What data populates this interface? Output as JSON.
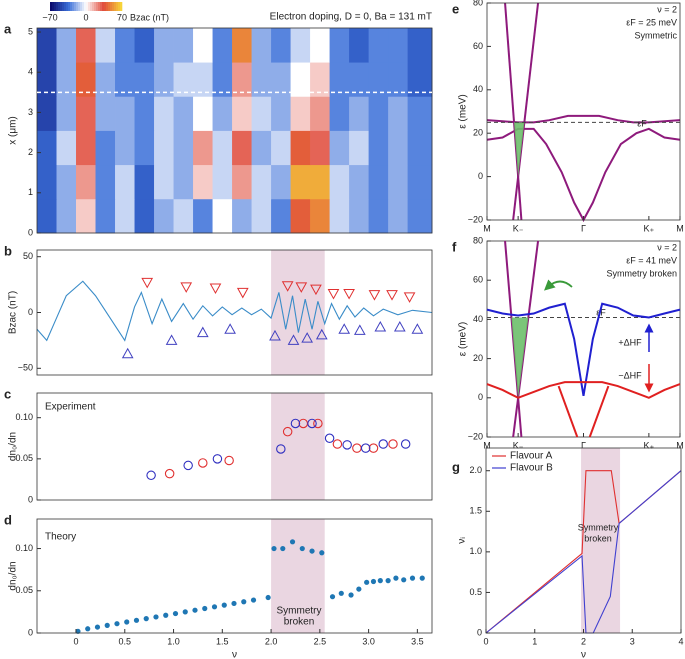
{
  "chart_data": [
    {
      "type": "heatmap",
      "label": "a",
      "title": "Electron doping, D = 0, Ba = 131 mT",
      "ylabel": "x (μm)",
      "colorbar_label": "Bzac (nT)",
      "xlim": [
        -0.4,
        3.65
      ],
      "ylim": [
        0,
        5.1
      ],
      "yticks": [
        0,
        1,
        2,
        3,
        4,
        5
      ],
      "xbins": [
        -0.4,
        -0.2,
        0,
        0.2,
        0.4,
        0.6,
        0.8,
        1,
        1.2,
        1.4,
        1.6,
        1.8,
        2,
        2.2,
        2.4,
        2.6,
        2.8,
        3,
        3.2,
        3.4,
        3.65
      ],
      "ybins": [
        0,
        0.85,
        1.7,
        2.55,
        3.4,
        4.25,
        5.1
      ],
      "z": [
        [
          -40,
          -20,
          10,
          -30,
          -10,
          -40,
          -20,
          -10,
          -30,
          0,
          -20,
          -10,
          -30,
          40,
          50,
          -10,
          -20,
          -30,
          -20,
          -30
        ],
        [
          -40,
          -20,
          20,
          -30,
          -10,
          -40,
          -10,
          -20,
          10,
          -10,
          20,
          -10,
          -20,
          60,
          60,
          -10,
          -20,
          -30,
          -20,
          -30
        ],
        [
          -40,
          -10,
          30,
          -30,
          -20,
          -30,
          -10,
          -20,
          20,
          -10,
          30,
          -20,
          -10,
          40,
          30,
          -20,
          -10,
          -30,
          -20,
          -30
        ],
        [
          -50,
          -20,
          30,
          -20,
          -20,
          -30,
          -10,
          -20,
          0,
          -20,
          10,
          -10,
          -20,
          10,
          20,
          -30,
          -20,
          -30,
          -20,
          -30
        ],
        [
          -50,
          -20,
          40,
          -20,
          -30,
          -30,
          -20,
          -10,
          -10,
          -30,
          20,
          -20,
          -20,
          0,
          10,
          -30,
          -30,
          -30,
          -30,
          -40
        ],
        [
          -50,
          -20,
          30,
          -10,
          -30,
          -40,
          -20,
          -20,
          0,
          -30,
          50,
          -20,
          -30,
          -10,
          0,
          -30,
          -40,
          -30,
          -30,
          -40
        ]
      ],
      "zlim": [
        -70,
        70
      ],
      "zticks": [
        {
          "value": -70,
          "label": "−70"
        },
        0,
        70
      ],
      "colorscale": [
        "#0a0a6e",
        "#3b6fd8",
        "#ffffff",
        "#e04a3a",
        "#f7d33a"
      ],
      "hline": 3.5
    },
    {
      "type": "combo",
      "label": "b",
      "ylabel": "Bzac (nT)",
      "xlim": [
        -0.4,
        3.65
      ],
      "ylim": [
        -56,
        56
      ],
      "yticks": [
        {
          "value": -50,
          "label": "−50"
        },
        0,
        50
      ],
      "shade": [
        2,
        2.55
      ],
      "shade_color": "#ead6e1",
      "series": [
        {
          "color": "#3a8cc8",
          "x": [
            -0.4,
            -0.3,
            -0.2,
            -0.1,
            0.07,
            0.2,
            0.35,
            0.5,
            0.6,
            0.67,
            0.78,
            0.88,
            0.98,
            1.1,
            1.2,
            1.3,
            1.4,
            1.5,
            1.6,
            1.7,
            1.8,
            1.9,
            2.0,
            2.08,
            2.15,
            2.22,
            2.28,
            2.35,
            2.42,
            2.48,
            2.55,
            2.62,
            2.7,
            2.78,
            2.86,
            2.95,
            3.05,
            3.15,
            3.3,
            3.45,
            3.65
          ],
          "values": [
            -15,
            -25,
            -5,
            15,
            28,
            15,
            -5,
            -25,
            5,
            18,
            -10,
            12,
            -8,
            8,
            -6,
            6,
            -3,
            5,
            -2,
            4,
            -2,
            3,
            -5,
            18,
            -15,
            15,
            -18,
            12,
            -15,
            10,
            -10,
            8,
            -6,
            6,
            -4,
            4,
            -3,
            3,
            -2,
            2,
            0
          ]
        },
        {
          "color": "#e03030",
          "marker": "triangle-down",
          "x": [
            0.73,
            1.13,
            1.43,
            1.71,
            2.17,
            2.31,
            2.46,
            2.64,
            2.8,
            3.06,
            3.24,
            3.42
          ],
          "values": [
            27,
            23,
            22,
            18,
            24,
            23,
            21,
            17,
            17,
            16,
            16,
            14
          ]
        },
        {
          "color": "#4040c0",
          "marker": "triangle-up",
          "x": [
            0.53,
            0.98,
            1.3,
            1.58,
            2.04,
            2.23,
            2.37,
            2.52,
            2.75,
            2.91,
            3.12,
            3.32,
            3.5
          ],
          "values": [
            -37,
            -25,
            -18,
            -15,
            -21,
            -25,
            -23,
            -20,
            -15,
            -16,
            -13,
            -13,
            -15
          ]
        }
      ]
    },
    {
      "type": "scatter",
      "label": "c",
      "ylabel": "dn₀/dn",
      "annotations": [
        "Experiment"
      ],
      "xlim": [
        -0.4,
        3.65
      ],
      "ylim": [
        0,
        0.13
      ],
      "yticks": [
        0,
        0.05,
        {
          "value": 0.1,
          "label": "0.10"
        }
      ],
      "shade": [
        2,
        2.55
      ],
      "shade_color": "#ead6e1",
      "series": [
        {
          "color": "#e03030",
          "marker": "circle-open",
          "x": [
            0.96,
            1.3,
            1.57,
            2.17,
            2.33,
            2.48,
            2.68,
            2.88,
            3.05,
            3.25
          ],
          "values": [
            0.032,
            0.045,
            0.048,
            0.083,
            0.093,
            0.093,
            0.068,
            0.063,
            0.063,
            0.068
          ]
        },
        {
          "color": "#3030c0",
          "marker": "circle-open",
          "x": [
            0.77,
            1.15,
            1.45,
            2.1,
            2.25,
            2.42,
            2.6,
            2.78,
            2.97,
            3.15,
            3.38
          ],
          "values": [
            0.03,
            0.042,
            0.05,
            0.062,
            0.093,
            0.093,
            0.075,
            0.067,
            0.063,
            0.068,
            0.068
          ]
        }
      ]
    },
    {
      "type": "scatter",
      "label": "d",
      "ylabel": "dn₀/dn",
      "xlabel": "ν",
      "annotations": [
        "Theory",
        "Symmetry",
        "broken"
      ],
      "xlim": [
        -0.4,
        3.65
      ],
      "ylim": [
        0,
        0.135
      ],
      "yticks": [
        0,
        0.05,
        {
          "value": 0.1,
          "label": "0.10"
        }
      ],
      "xticks": [
        0,
        0.5,
        {
          "value": 1,
          "label": "1.0"
        },
        1.5,
        {
          "value": 2,
          "label": "2.0"
        },
        2.5,
        {
          "value": 3,
          "label": "3.0"
        },
        3.5
      ],
      "shade": [
        2,
        2.55
      ],
      "shade_color": "#ead6e1",
      "series": [
        {
          "color": "#1f77b4",
          "marker": "circle",
          "x": [
            0.02,
            0.12,
            0.22,
            0.32,
            0.42,
            0.52,
            0.62,
            0.72,
            0.82,
            0.92,
            1.02,
            1.12,
            1.22,
            1.32,
            1.42,
            1.52,
            1.62,
            1.72,
            1.82,
            1.97,
            2.03,
            2.12,
            2.22,
            2.32,
            2.42,
            2.52,
            2.63,
            2.72,
            2.82,
            2.9,
            2.98,
            3.05,
            3.12,
            3.2,
            3.28,
            3.36,
            3.45,
            3.55
          ],
          "values": [
            0.002,
            0.005,
            0.007,
            0.009,
            0.011,
            0.013,
            0.015,
            0.017,
            0.019,
            0.021,
            0.023,
            0.025,
            0.027,
            0.029,
            0.031,
            0.033,
            0.035,
            0.037,
            0.039,
            0.042,
            0.1,
            0.1,
            0.108,
            0.1,
            0.097,
            0.095,
            0.043,
            0.047,
            0.045,
            0.052,
            0.06,
            0.061,
            0.062,
            0.062,
            0.065,
            0.063,
            0.065,
            0.065
          ]
        }
      ]
    },
    {
      "type": "band",
      "label": "e",
      "ylabel": "ε (meV)",
      "annotations": [
        "ν = 2",
        "εF = 25 meV",
        "Symmetric",
        "εF"
      ],
      "xlim": [
        0,
        6.2
      ],
      "ylim": [
        -20,
        80
      ],
      "yticks": [
        {
          "value": -20,
          "label": "−20"
        },
        0,
        20,
        40,
        60,
        80
      ],
      "xticks": [
        {
          "value": 0,
          "label": "M"
        },
        {
          "value": 1,
          "label": "K₋"
        },
        {
          "value": 3.1,
          "label": "Γ"
        },
        {
          "value": 5.2,
          "label": "K₊"
        },
        {
          "value": 6.2,
          "label": "M"
        }
      ],
      "hline": 25,
      "occupied_color": "#6dbf6a",
      "series": [
        {
          "color": "#8e1a7c",
          "x": [
            0.58,
            1.105
          ],
          "values": [
            80,
            -20
          ]
        },
        {
          "color": "#8e1a7c",
          "x": [
            0.84,
            1.64
          ],
          "values": [
            -20,
            80
          ]
        },
        {
          "color": "#8e1a7c",
          "x": [
            0,
            0.5,
            1,
            1.5,
            2,
            2.6,
            3.1,
            3.6,
            4.2,
            4.7,
            5.2,
            5.7,
            6.2
          ],
          "values": [
            26,
            25.5,
            25,
            25,
            26,
            28,
            28,
            28,
            26,
            25,
            25,
            25.5,
            26
          ]
        },
        {
          "color": "#8e1a7c",
          "x": [
            0,
            0.5,
            1,
            1.5,
            1.9,
            2.4,
            2.8,
            3.1,
            3.4,
            3.8,
            4.3,
            4.8,
            5.2,
            5.7,
            6.2
          ],
          "values": [
            17,
            18,
            22,
            22,
            15,
            2,
            -12,
            -20,
            -12,
            2,
            15,
            20,
            22,
            18,
            17
          ]
        }
      ]
    },
    {
      "type": "band",
      "label": "f",
      "ylabel": "ε (meV)",
      "annotations": [
        "ν = 2",
        "εF = 41 meV",
        "Symmetry broken",
        "εF",
        "+ΔHF",
        "−ΔHF"
      ],
      "xlim": [
        0,
        6.2
      ],
      "ylim": [
        -20,
        80
      ],
      "yticks": [
        {
          "value": -20,
          "label": "−20"
        },
        0,
        20,
        40,
        60,
        80
      ],
      "xticks": [
        {
          "value": 0,
          "label": "M"
        },
        {
          "value": 1,
          "label": "K₋"
        },
        {
          "value": 3.1,
          "label": "Γ"
        },
        {
          "value": 5.2,
          "label": "K₊"
        },
        {
          "value": 6.2,
          "label": "M"
        }
      ],
      "hline": 41,
      "occupied_color": "#6dbf6a",
      "series": [
        {
          "color": "#8e1a7c",
          "x": [
            0.58,
            1.105
          ],
          "values": [
            80,
            -20
          ]
        },
        {
          "color": "#8e1a7c",
          "x": [
            0.84,
            1.64
          ],
          "values": [
            -20,
            80
          ]
        },
        {
          "color": "#2020d0",
          "x": [
            0,
            0.5,
            1,
            1.5,
            2,
            2.5,
            2.8,
            3.1,
            3.4,
            3.7,
            4.2,
            4.7,
            5.2,
            5.7,
            6.2
          ],
          "values": [
            45,
            43,
            42,
            43,
            46,
            48,
            30,
            1,
            30,
            48,
            46,
            42,
            41,
            43,
            45
          ]
        },
        {
          "color": "#e02020",
          "x": [
            0,
            0.5,
            1,
            1.5,
            2,
            2.5,
            3.1,
            3.7,
            4.2,
            4.7,
            5.2,
            5.7,
            6.2
          ],
          "values": [
            7,
            4,
            0,
            3,
            6,
            8,
            8,
            8,
            6,
            3,
            0,
            4,
            7
          ]
        },
        {
          "color": "#e02020",
          "x": [
            2.3,
            2.9
          ],
          "values": [
            6,
            -20
          ]
        },
        {
          "color": "#e02020",
          "x": [
            3.3,
            3.9
          ],
          "values": [
            -20,
            6
          ]
        }
      ]
    },
    {
      "type": "line",
      "label": "g",
      "ylabel": "νᵢ",
      "xlabel": "ν",
      "annotations": [
        "Symmetry",
        "broken"
      ],
      "legend": "top-left",
      "xlim": [
        0,
        4
      ],
      "ylim": [
        0,
        2.28
      ],
      "xticks": [
        0,
        1,
        2,
        3,
        4
      ],
      "yticks": [
        0,
        0.5,
        {
          "value": 1,
          "label": "1.0"
        },
        1.5,
        {
          "value": 2,
          "label": "2.0"
        }
      ],
      "shade": [
        1.95,
        2.75
      ],
      "shade_color": "#ead6e1",
      "series": [
        {
          "name": "Flavour A",
          "color": "#e03030",
          "x": [
            0,
            1.97,
            2.05,
            2.57,
            2.73,
            4
          ],
          "values": [
            0,
            0.98,
            2,
            2,
            1.35,
            2
          ]
        },
        {
          "name": "Flavour B",
          "color": "#4040d0",
          "x": [
            0,
            1.97,
            2.05,
            2.2,
            2.55,
            2.73,
            4
          ],
          "values": [
            0,
            0.95,
            0,
            0,
            0.45,
            1.35,
            2
          ]
        }
      ]
    }
  ]
}
